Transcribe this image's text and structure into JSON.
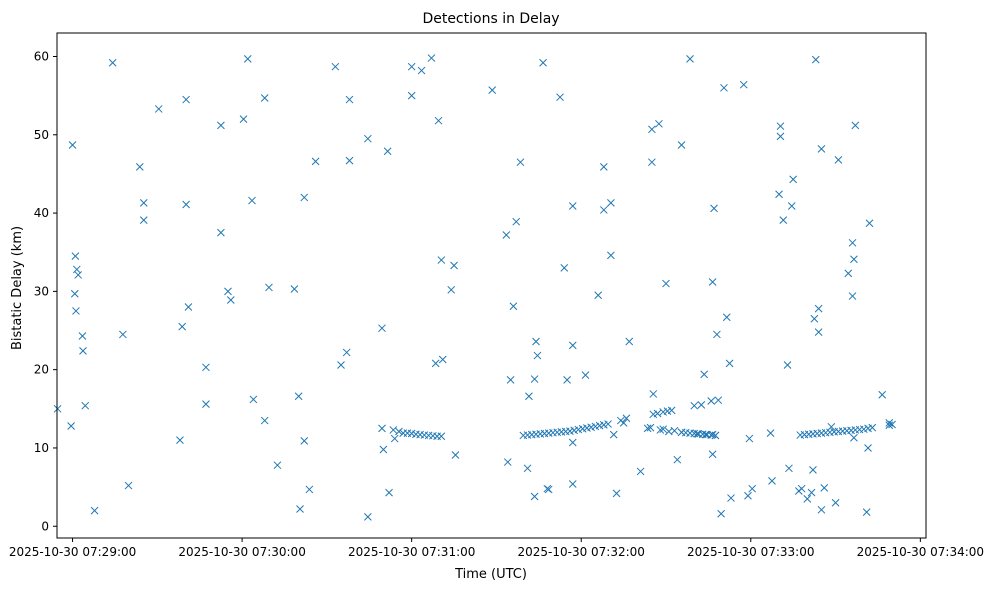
{
  "chart_data": {
    "type": "scatter",
    "title": "Detections in Delay",
    "xlabel": "Time (UTC)",
    "ylabel": "Bistatic Delay (km)",
    "marker": "x",
    "color": "#1f77b4",
    "x_unit": "seconds after 2025-10-30 07:29:00 UTC",
    "xlim": [
      -5.5,
      302
    ],
    "ylim": [
      -1.5,
      63
    ],
    "grid": false,
    "x_ticks": [
      {
        "value": 0,
        "label": "2025-10-30 07:29:00"
      },
      {
        "value": 60,
        "label": "2025-10-30 07:30:00"
      },
      {
        "value": 120,
        "label": "2025-10-30 07:31:00"
      },
      {
        "value": 180,
        "label": "2025-10-30 07:32:00"
      },
      {
        "value": 240,
        "label": "2025-10-30 07:33:00"
      },
      {
        "value": 300,
        "label": "2025-10-30 07:34:00"
      }
    ],
    "y_ticks": [
      {
        "value": 0,
        "label": "0"
      },
      {
        "value": 10,
        "label": "10"
      },
      {
        "value": 20,
        "label": "20"
      },
      {
        "value": 30,
        "label": "30"
      },
      {
        "value": 40,
        "label": "40"
      },
      {
        "value": 50,
        "label": "50"
      },
      {
        "value": 60,
        "label": "60"
      }
    ],
    "points": [
      [
        -5.3,
        15
      ],
      [
        -0.5,
        12.8
      ],
      [
        0,
        48.7
      ],
      [
        1,
        34.5
      ],
      [
        1.5,
        32.8
      ],
      [
        2,
        32.1
      ],
      [
        0.8,
        29.7
      ],
      [
        1.2,
        27.5
      ],
      [
        3.5,
        24.3
      ],
      [
        3.7,
        22.4
      ],
      [
        4.5,
        15.4
      ],
      [
        7.8,
        2
      ],
      [
        14.2,
        59.2
      ],
      [
        17.8,
        24.5
      ],
      [
        19.8,
        5.2
      ],
      [
        23.8,
        45.9
      ],
      [
        25.2,
        41.3
      ],
      [
        25.2,
        39.1
      ],
      [
        30.5,
        53.3
      ],
      [
        38.8,
        25.5
      ],
      [
        38,
        11
      ],
      [
        40.2,
        54.5
      ],
      [
        40.2,
        41.1
      ],
      [
        41,
        28
      ],
      [
        47.2,
        20.3
      ],
      [
        47.2,
        15.6
      ],
      [
        52.5,
        51.2
      ],
      [
        52.5,
        37.5
      ],
      [
        55,
        30
      ],
      [
        56,
        28.9
      ],
      [
        60.5,
        52
      ],
      [
        62,
        59.7
      ],
      [
        63.5,
        41.6
      ],
      [
        64,
        16.2
      ],
      [
        68,
        54.7
      ],
      [
        68,
        13.5
      ],
      [
        69.5,
        30.5
      ],
      [
        72.5,
        7.8
      ],
      [
        78.5,
        30.3
      ],
      [
        80,
        16.6
      ],
      [
        80.5,
        2.2
      ],
      [
        82,
        10.9
      ],
      [
        82,
        42
      ],
      [
        83.8,
        4.7
      ],
      [
        86,
        46.6
      ],
      [
        93,
        58.7
      ],
      [
        95,
        20.6
      ],
      [
        97,
        22.2
      ],
      [
        98,
        54.5
      ],
      [
        98,
        46.7
      ],
      [
        104.5,
        1.2
      ],
      [
        104.5,
        49.5
      ],
      [
        109.5,
        25.3
      ],
      [
        109.5,
        12.5
      ],
      [
        110,
        9.8
      ],
      [
        111.5,
        47.9
      ],
      [
        112,
        4.3
      ],
      [
        113.5,
        12.3
      ],
      [
        114,
        11.2
      ],
      [
        115.5,
        12.1
      ],
      [
        117,
        11.9
      ],
      [
        120,
        58.7
      ],
      [
        120,
        55
      ],
      [
        123.5,
        58.2
      ],
      [
        127,
        59.8
      ],
      [
        129.5,
        51.8
      ],
      [
        130.5,
        34
      ],
      [
        134,
        30.2
      ],
      [
        135,
        33.3
      ],
      [
        135.5,
        9.1
      ],
      [
        131,
        21.3
      ],
      [
        128.5,
        20.8
      ],
      [
        148.5,
        55.7
      ],
      [
        153.5,
        37.2
      ],
      [
        154,
        8.2
      ],
      [
        156,
        28.1
      ],
      [
        157,
        38.9
      ],
      [
        158.5,
        46.5
      ],
      [
        155,
        18.7
      ],
      [
        161.5,
        16.6
      ],
      [
        161,
        7.4
      ],
      [
        164,
        23.6
      ],
      [
        164.5,
        21.8
      ],
      [
        163.5,
        18.8
      ],
      [
        163.5,
        3.8
      ],
      [
        166.5,
        59.2
      ],
      [
        168,
        4.8
      ],
      [
        168.5,
        4.7
      ],
      [
        172.5,
        54.8
      ],
      [
        175,
        18.7
      ],
      [
        174,
        33
      ],
      [
        177,
        40.9
      ],
      [
        177,
        23.1
      ],
      [
        177,
        10.7
      ],
      [
        177,
        5.4
      ],
      [
        181.5,
        19.3
      ],
      [
        186,
        29.5
      ],
      [
        188,
        45.9
      ],
      [
        188,
        40.4
      ],
      [
        190.5,
        41.3
      ],
      [
        190.5,
        34.6
      ],
      [
        191.5,
        11.7
      ],
      [
        192.5,
        4.2
      ],
      [
        197,
        23.6
      ],
      [
        201,
        7
      ],
      [
        203.5,
        12.5
      ],
      [
        204.5,
        12.6
      ],
      [
        205,
        50.7
      ],
      [
        205,
        46.5
      ],
      [
        207.5,
        51.4
      ],
      [
        205.5,
        16.9
      ],
      [
        210.5,
        14.7
      ],
      [
        210,
        31
      ],
      [
        214,
        8.5
      ],
      [
        215.5,
        48.7
      ],
      [
        218.5,
        59.7
      ],
      [
        220,
        15.4
      ],
      [
        222.5,
        15.5
      ],
      [
        223.5,
        19.4
      ],
      [
        226,
        16
      ],
      [
        228.5,
        16.1
      ],
      [
        226.5,
        31.2
      ],
      [
        227,
        40.6
      ],
      [
        226.5,
        9.2
      ],
      [
        228,
        24.5
      ],
      [
        229.5,
        1.6
      ],
      [
        230.5,
        56
      ],
      [
        231.5,
        26.7
      ],
      [
        232.5,
        20.8
      ],
      [
        233,
        3.6
      ],
      [
        237.5,
        56.4
      ],
      [
        239.5,
        11.2
      ],
      [
        239,
        3.9
      ],
      [
        240.5,
        4.8
      ],
      [
        247.5,
        5.8
      ],
      [
        247,
        11.9
      ],
      [
        250.5,
        51.1
      ],
      [
        250.5,
        49.8
      ],
      [
        250,
        42.4
      ],
      [
        251.5,
        39.1
      ],
      [
        253,
        20.6
      ],
      [
        253.5,
        7.4
      ],
      [
        255,
        44.3
      ],
      [
        254.5,
        40.9
      ],
      [
        260,
        3.5
      ],
      [
        261.5,
        4.3
      ],
      [
        262,
        7.2
      ],
      [
        263,
        59.6
      ],
      [
        262.5,
        26.5
      ],
      [
        264,
        27.8
      ],
      [
        264,
        24.8
      ],
      [
        265,
        48.2
      ],
      [
        266,
        4.9
      ],
      [
        265,
        2.1
      ],
      [
        268.5,
        12.7
      ],
      [
        271,
        46.8
      ],
      [
        270,
        3
      ],
      [
        274.5,
        32.3
      ],
      [
        276,
        36.2
      ],
      [
        276.5,
        34.1
      ],
      [
        276,
        29.4
      ],
      [
        277,
        51.2
      ],
      [
        276.5,
        11.3
      ],
      [
        281,
        1.8
      ],
      [
        281.5,
        10
      ],
      [
        282,
        38.7
      ],
      [
        286.5,
        16.8
      ],
      [
        289,
        13.2
      ],
      [
        289,
        12.9
      ],
      [
        290,
        13
      ],
      [
        257,
        4.5
      ],
      [
        258,
        4.8
      ],
      [
        215.5,
        12
      ],
      [
        195,
        13.2
      ],
      [
        194,
        13.5
      ],
      [
        196,
        13.8
      ],
      [
        209,
        14.6
      ],
      [
        212,
        14.8
      ],
      [
        221,
        11.8
      ],
      [
        224,
        11.7
      ],
      [
        205.5,
        14.3
      ],
      [
        207,
        14.4
      ],
      [
        208,
        12.3
      ],
      [
        209,
        12.4
      ],
      [
        211,
        12.1
      ],
      [
        213,
        12.2
      ],
      [
        226.5,
        11.7
      ],
      [
        227.5,
        11.6
      ],
      [
        118.5,
        11.9
      ],
      [
        120,
        11.85
      ],
      [
        121.5,
        11.75
      ],
      [
        123,
        11.7
      ],
      [
        124.5,
        11.65
      ],
      [
        126,
        11.6
      ],
      [
        127.5,
        11.55
      ],
      [
        129,
        11.5
      ],
      [
        130.5,
        11.5
      ],
      [
        159.5,
        11.6
      ],
      [
        161,
        11.65
      ],
      [
        162.5,
        11.7
      ],
      [
        164,
        11.75
      ],
      [
        165.5,
        11.8
      ],
      [
        167,
        11.85
      ],
      [
        168.5,
        11.9
      ],
      [
        170,
        11.95
      ],
      [
        171.5,
        12
      ],
      [
        173,
        12.05
      ],
      [
        174.5,
        12.1
      ],
      [
        176,
        12.15
      ],
      [
        177.5,
        12.25
      ],
      [
        179,
        12.35
      ],
      [
        180.5,
        12.45
      ],
      [
        182,
        12.55
      ],
      [
        183.5,
        12.65
      ],
      [
        185,
        12.75
      ],
      [
        186.5,
        12.85
      ],
      [
        188,
        12.95
      ],
      [
        189.5,
        13.05
      ],
      [
        215.5,
        12
      ],
      [
        217,
        11.95
      ],
      [
        218.5,
        11.9
      ],
      [
        220,
        11.85
      ],
      [
        221.5,
        11.8
      ],
      [
        223,
        11.75
      ],
      [
        224.5,
        11.7
      ],
      [
        226,
        11.65
      ],
      [
        227.5,
        11.6
      ],
      [
        257.5,
        11.65
      ],
      [
        259,
        11.7
      ],
      [
        260.5,
        11.75
      ],
      [
        262,
        11.8
      ],
      [
        263.5,
        11.85
      ],
      [
        265,
        11.9
      ],
      [
        266.5,
        11.95
      ],
      [
        268,
        12
      ],
      [
        269.5,
        12.05
      ],
      [
        271,
        12.1
      ],
      [
        272.5,
        12.15
      ],
      [
        274,
        12.2
      ],
      [
        275.5,
        12.25
      ],
      [
        277,
        12.3
      ],
      [
        278.5,
        12.35
      ],
      [
        280,
        12.4
      ],
      [
        281.5,
        12.5
      ],
      [
        283,
        12.6
      ]
    ]
  }
}
